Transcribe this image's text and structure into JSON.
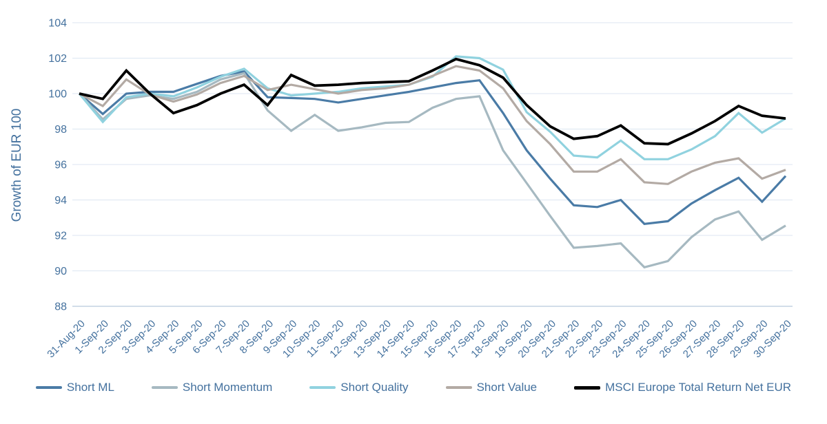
{
  "page": {
    "background": "#ffffff"
  },
  "style": {
    "axis_text_color": "#44719e",
    "gridline_color": "#dce6f1",
    "baseline_color": "#c3d2e2"
  },
  "chart_data": {
    "type": "line",
    "title": "",
    "xlabel": "",
    "ylabel": "Growth of EUR 100",
    "ylim": [
      88,
      104
    ],
    "yticks": [
      104,
      102,
      100,
      98,
      96,
      94,
      92,
      90,
      88
    ],
    "grid": true,
    "legend_position": "bottom",
    "x": [
      "31-Aug-20",
      "1-Sep-20",
      "2-Sep-20",
      "3-Sep-20",
      "4-Sep-20",
      "5-Sep-20",
      "6-Sep-20",
      "7-Sep-20",
      "8-Sep-20",
      "9-Sep-20",
      "10-Sep-20",
      "11-Sep-20",
      "12-Sep-20",
      "13-Sep-20",
      "14-Sep-20",
      "15-Sep-20",
      "16-Sep-20",
      "17-Sep-20",
      "18-Sep-20",
      "19-Sep-20",
      "20-Sep-20",
      "21-Sep-20",
      "22-Sep-20",
      "23-Sep-20",
      "24-Sep-20",
      "25-Sep-20",
      "26-Sep-20",
      "27-Sep-20",
      "28-Sep-20",
      "29-Sep-20",
      "30-Sep-20"
    ],
    "series": [
      {
        "name": "Short ML",
        "color": "#4a7ba6",
        "line_width": 3.2,
        "values": [
          100.0,
          98.85,
          100.0,
          100.1,
          100.1,
          100.55,
          101.0,
          101.25,
          99.8,
          99.75,
          99.7,
          99.5,
          99.7,
          99.9,
          100.1,
          100.35,
          100.6,
          100.75,
          98.9,
          96.8,
          95.2,
          93.7,
          93.6,
          94.0,
          92.65,
          92.8,
          93.8,
          94.55,
          95.25,
          93.9,
          95.35
        ]
      },
      {
        "name": "Short Momentum",
        "color": "#a6b9c1",
        "line_width": 3.2,
        "values": [
          100.0,
          98.55,
          99.7,
          99.9,
          99.7,
          100.1,
          100.8,
          101.15,
          99.05,
          97.9,
          98.8,
          97.9,
          98.1,
          98.35,
          98.4,
          99.2,
          99.7,
          99.85,
          96.8,
          94.95,
          93.1,
          91.3,
          91.4,
          91.55,
          90.2,
          90.55,
          91.9,
          92.9,
          93.35,
          91.75,
          92.55
        ]
      },
      {
        "name": "Short Quality",
        "color": "#90d2df",
        "line_width": 3.2,
        "values": [
          100.0,
          98.4,
          99.8,
          100.0,
          99.85,
          100.35,
          100.95,
          101.4,
          100.3,
          99.9,
          100.0,
          100.1,
          100.3,
          100.4,
          100.5,
          100.95,
          102.1,
          102.0,
          101.35,
          98.95,
          97.85,
          96.5,
          96.4,
          97.35,
          96.3,
          96.3,
          96.85,
          97.6,
          98.9,
          97.8,
          98.6
        ]
      },
      {
        "name": "Short Value",
        "color": "#b3aaa4",
        "line_width": 3.2,
        "values": [
          100.0,
          99.3,
          100.8,
          99.95,
          99.55,
          99.95,
          100.6,
          101.0,
          100.2,
          100.5,
          100.25,
          100.0,
          100.2,
          100.3,
          100.5,
          101.0,
          101.55,
          101.3,
          100.3,
          98.45,
          97.15,
          95.6,
          95.6,
          96.3,
          95.0,
          94.9,
          95.6,
          96.1,
          96.35,
          95.2,
          95.7
        ]
      },
      {
        "name": "MSCI Europe Total Return Net EUR",
        "color": "#000000",
        "line_width": 3.8,
        "values": [
          100.0,
          99.7,
          101.3,
          100.0,
          98.9,
          99.35,
          100.0,
          100.5,
          99.35,
          101.05,
          100.45,
          100.5,
          100.6,
          100.65,
          100.7,
          101.3,
          101.95,
          101.6,
          100.9,
          99.35,
          98.15,
          97.45,
          97.6,
          98.2,
          97.2,
          97.15,
          97.75,
          98.45,
          99.3,
          98.75,
          98.6
        ]
      }
    ]
  }
}
